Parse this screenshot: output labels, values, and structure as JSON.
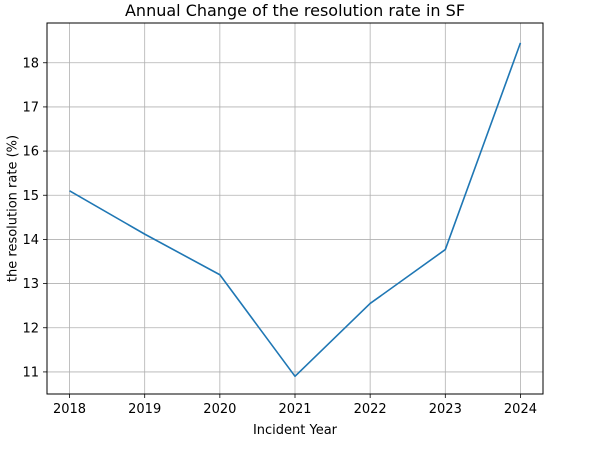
{
  "chart_data": {
    "type": "line",
    "title": "Annual Change of the resolution rate in SF",
    "xlabel": "Incident Year",
    "ylabel": "the resolution rate (%)",
    "x": [
      2018,
      2019,
      2020,
      2021,
      2022,
      2023,
      2024
    ],
    "series": [
      {
        "values": [
          15.1,
          14.12,
          13.2,
          10.9,
          12.55,
          13.77,
          18.45
        ],
        "color": "#1f77b4"
      }
    ],
    "xticks": [
      "2018",
      "2019",
      "2020",
      "2021",
      "2022",
      "2023",
      "2024"
    ],
    "yticks": [
      "11",
      "12",
      "13",
      "14",
      "15",
      "16",
      "17",
      "18"
    ],
    "xlim": [
      2017.7,
      2024.3
    ],
    "ylim": [
      10.5,
      18.9
    ],
    "grid": true,
    "legend": false
  }
}
